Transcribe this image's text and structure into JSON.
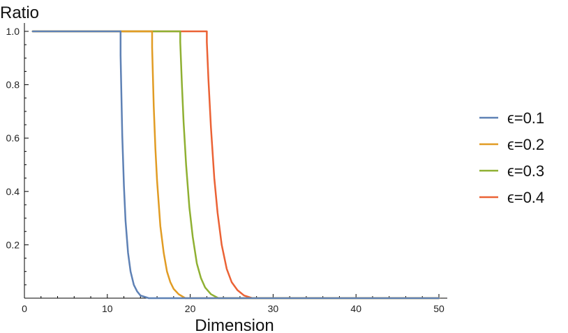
{
  "chart_data": {
    "type": "line",
    "xlabel": "Dimension",
    "ylabel": "Ratio",
    "xlim": [
      0,
      50
    ],
    "ylim": [
      0,
      1.0
    ],
    "x_ticks": [
      0,
      10,
      20,
      30,
      40,
      50
    ],
    "y_ticks": [
      0.2,
      0.4,
      0.6,
      0.8,
      1.0
    ],
    "x_tick_labels": [
      "0",
      "10",
      "20",
      "30",
      "40",
      "50"
    ],
    "y_tick_labels": [
      "0.2",
      "0.4",
      "0.6",
      "0.8",
      "1.0"
    ],
    "grid": false,
    "legend_position": "right",
    "series": [
      {
        "name": "ϵ=0.1",
        "color": "#5e81b5",
        "x": [
          1,
          11.6,
          11.6,
          11.8,
          12.0,
          12.2,
          12.5,
          12.8,
          13.2,
          13.6,
          14.0,
          15.0,
          50
        ],
        "y": [
          1.0,
          1.0,
          0.91,
          0.61,
          0.42,
          0.29,
          0.17,
          0.1,
          0.05,
          0.025,
          0.01,
          0.0,
          0.0
        ]
      },
      {
        "name": "ϵ=0.2",
        "color": "#e19c24",
        "x": [
          1,
          15.4,
          15.4,
          15.6,
          15.8,
          16.0,
          16.4,
          16.8,
          17.2,
          17.6,
          18.0,
          18.6,
          19.4,
          50
        ],
        "y": [
          1.0,
          1.0,
          0.94,
          0.72,
          0.56,
          0.44,
          0.27,
          0.17,
          0.1,
          0.06,
          0.035,
          0.015,
          0.0,
          0.0
        ]
      },
      {
        "name": "ϵ=0.3",
        "color": "#8fb032",
        "x": [
          1,
          18.8,
          18.8,
          19.0,
          19.2,
          19.5,
          19.9,
          20.3,
          20.8,
          21.3,
          21.8,
          22.5,
          23.4,
          50
        ],
        "y": [
          1.0,
          1.0,
          0.96,
          0.8,
          0.66,
          0.5,
          0.34,
          0.23,
          0.13,
          0.075,
          0.04,
          0.015,
          0.0,
          0.0
        ]
      },
      {
        "name": "ϵ=0.4",
        "color": "#eb6235",
        "x": [
          1,
          22.0,
          22.0,
          22.2,
          22.5,
          22.9,
          23.3,
          23.8,
          24.4,
          25.0,
          25.7,
          26.5,
          27.5,
          50
        ],
        "y": [
          1.0,
          1.0,
          0.96,
          0.82,
          0.64,
          0.45,
          0.32,
          0.2,
          0.11,
          0.06,
          0.03,
          0.01,
          0.0,
          0.0
        ]
      }
    ]
  }
}
